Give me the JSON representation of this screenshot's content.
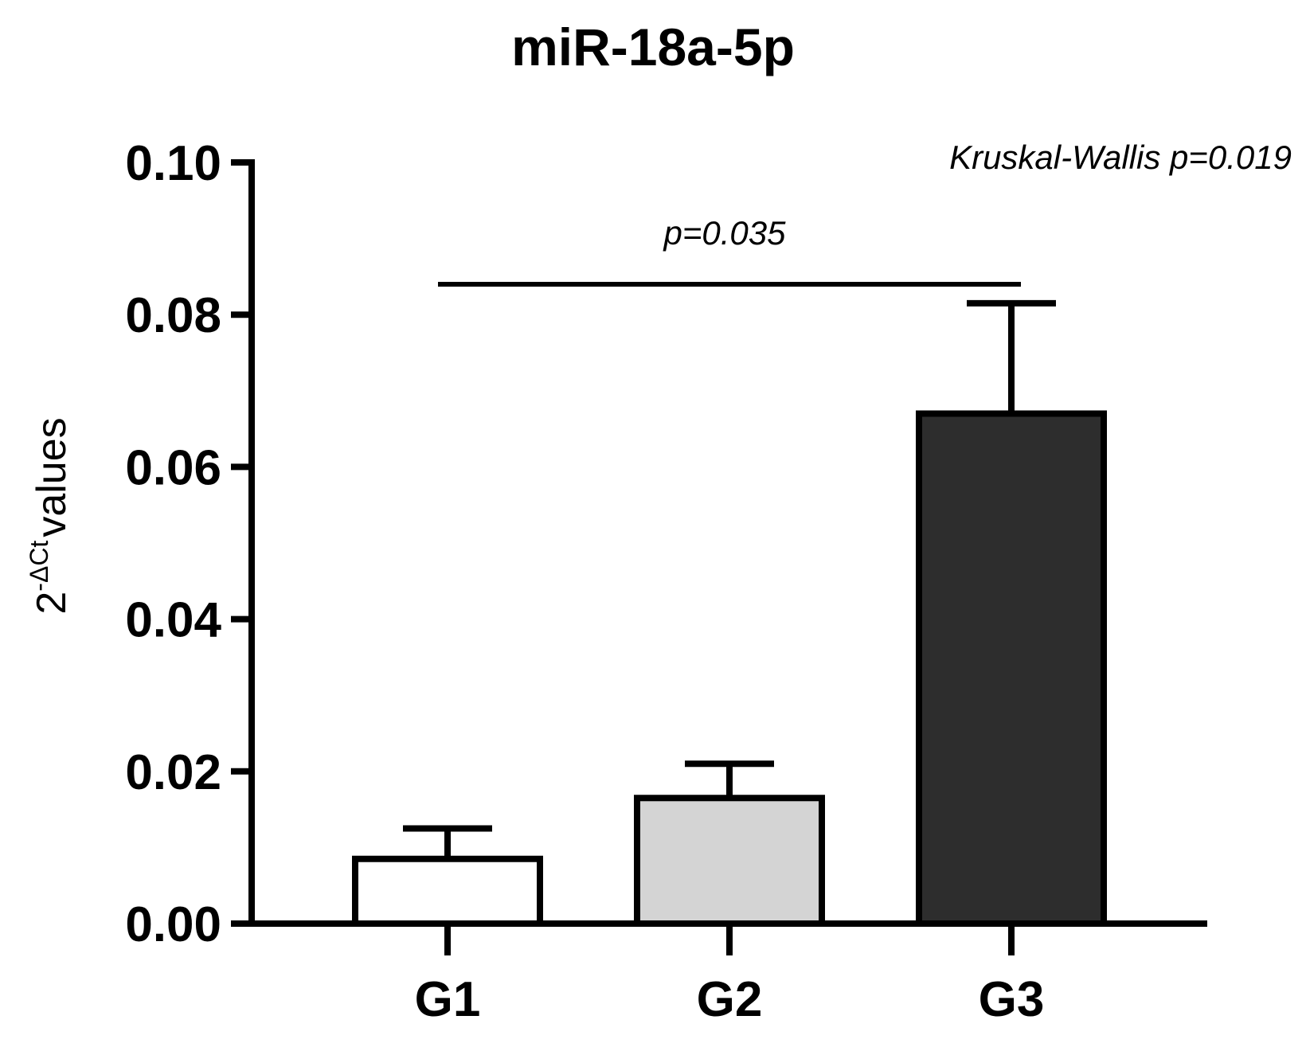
{
  "chart_data": {
    "type": "bar",
    "title": "miR-18a-5p",
    "ylabel": {
      "base": "2",
      "superscript": "-ΔCt",
      "text": "values"
    },
    "xlabel": "",
    "categories": [
      "G1",
      "G2",
      "G3"
    ],
    "values": [
      0.0085,
      0.0165,
      0.067
    ],
    "error_upper": [
      0.0125,
      0.021,
      0.0815
    ],
    "bar_colors": [
      "#ffffff",
      "#d4d4d4",
      "#2d2d2d"
    ],
    "ylim": [
      0,
      0.1
    ],
    "yticks": [
      "0.00",
      "0.02",
      "0.04",
      "0.06",
      "0.08",
      "0.10"
    ],
    "grid": false,
    "annotations": {
      "global_test": "Kruskal-Wallis p=0.019",
      "comparison": {
        "from": "G1",
        "to": "G3",
        "label": "p=0.035",
        "y": 0.084
      }
    }
  }
}
